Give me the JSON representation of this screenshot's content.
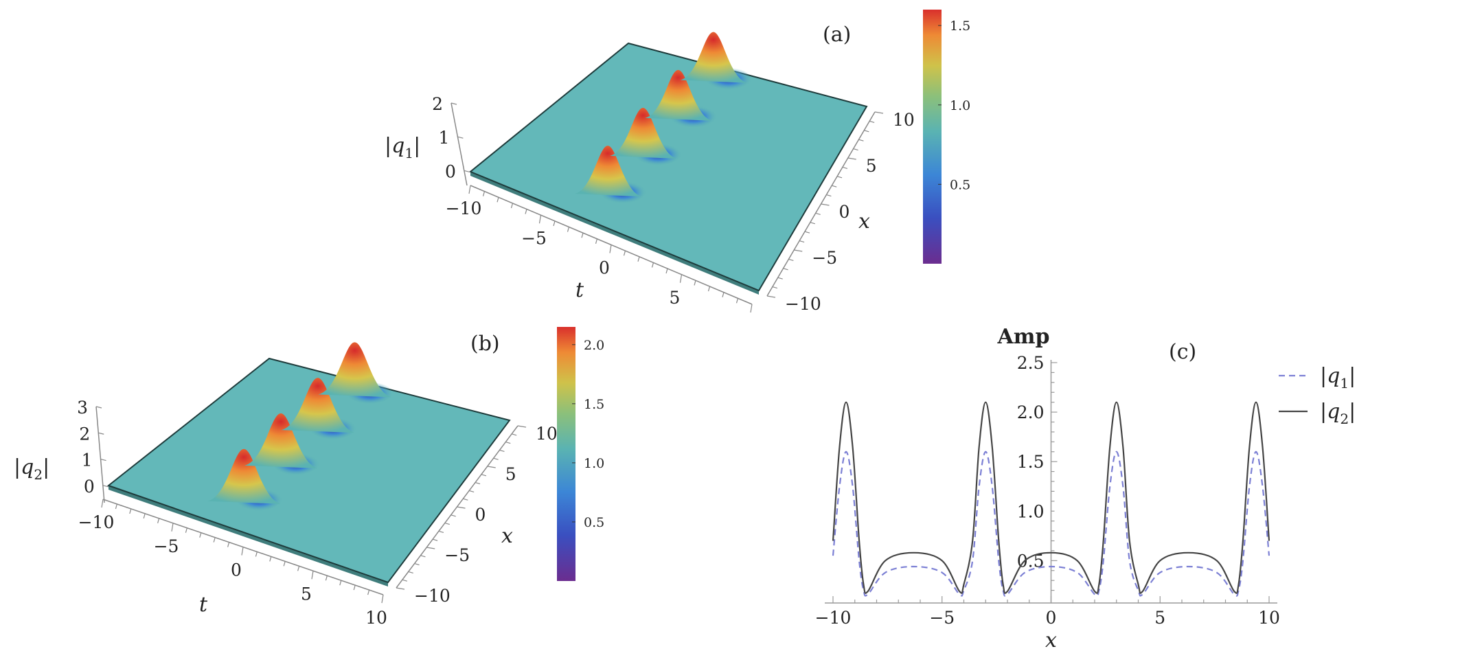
{
  "chart_data": [
    {
      "id": "a",
      "type": "surface",
      "panel_label": "(a)",
      "z_label_var": "q",
      "z_label_sub": "1",
      "z_axis_label": "|q1|",
      "x_axis_label": "t",
      "y_axis_label": "x",
      "t_ticks": [
        "−10",
        "−5",
        "0",
        "5"
      ],
      "x_ticks": [
        "10",
        "5",
        "0",
        "−5",
        "−10"
      ],
      "z_ticks": [
        "2",
        "1",
        "0"
      ],
      "peak_count": 4,
      "colorbar_ticks": [
        "1.5",
        "1.0",
        "0.5"
      ],
      "colorbar_range": [
        0,
        1.6
      ]
    },
    {
      "id": "b",
      "type": "surface",
      "panel_label": "(b)",
      "z_label_var": "q",
      "z_label_sub": "2",
      "z_axis_label": "|q2|",
      "x_axis_label": "t",
      "y_axis_label": "x",
      "t_ticks": [
        "−10",
        "−5",
        "0",
        "5",
        "10"
      ],
      "x_ticks": [
        "10",
        "5",
        "0",
        "−5",
        "−10"
      ],
      "z_ticks": [
        "3",
        "2",
        "1",
        "0"
      ],
      "peak_count": 4,
      "colorbar_ticks": [
        "2.0",
        "1.5",
        "1.0",
        "0.5"
      ],
      "colorbar_range": [
        0,
        2.15
      ]
    },
    {
      "id": "c",
      "type": "line",
      "panel_label": "(c)",
      "title": "Amp",
      "xlabel": "x",
      "xlim": [
        -10,
        10
      ],
      "ylim": [
        0.1,
        2.5
      ],
      "x_ticks": [
        -10,
        -5,
        0,
        5,
        10
      ],
      "x_tick_labels": [
        "−10",
        "−5",
        "0",
        "5",
        "10"
      ],
      "y_ticks": [
        0.5,
        1.0,
        1.5,
        2.0,
        2.5
      ],
      "y_tick_labels": [
        "0.5",
        "1.0",
        "1.5",
        "2.0",
        "2.5"
      ],
      "series": [
        {
          "name": "|q1|",
          "legend_var": "q",
          "legend_sub": "1",
          "style": "dashed",
          "color": "#7b7fd4",
          "x": [
            -10,
            -9.7,
            -9.4,
            -9.1,
            -8.8,
            -8.6,
            -8.4,
            -7.6,
            -6.3,
            -5.0,
            -4.2,
            -4.0,
            -3.6,
            -3.3,
            -3.0,
            -2.7,
            -2.4,
            -2.2,
            -2.0,
            -1.2,
            0,
            1.2,
            2.0,
            2.2,
            2.4,
            2.7,
            3.0,
            3.3,
            3.6,
            4.0,
            4.2,
            5.0,
            6.3,
            7.6,
            8.4,
            8.6,
            8.8,
            9.1,
            9.4,
            9.7,
            10
          ],
          "values": [
            0.55,
            1.25,
            1.6,
            1.25,
            0.5,
            0.2,
            0.16,
            0.38,
            0.44,
            0.38,
            0.16,
            0.2,
            0.5,
            1.25,
            1.6,
            1.25,
            0.5,
            0.2,
            0.16,
            0.38,
            0.44,
            0.38,
            0.16,
            0.2,
            0.5,
            1.25,
            1.6,
            1.25,
            0.5,
            0.2,
            0.16,
            0.38,
            0.44,
            0.38,
            0.16,
            0.2,
            0.5,
            1.25,
            1.6,
            1.25,
            0.55
          ]
        },
        {
          "name": "|q2|",
          "legend_var": "q",
          "legend_sub": "2",
          "style": "solid",
          "color": "#444444",
          "x": [
            -10,
            -9.7,
            -9.4,
            -9.1,
            -8.8,
            -8.6,
            -8.4,
            -7.6,
            -6.3,
            -5.0,
            -4.2,
            -4.0,
            -3.6,
            -3.3,
            -3.0,
            -2.7,
            -2.4,
            -2.2,
            -2.0,
            -1.2,
            0,
            1.2,
            2.0,
            2.2,
            2.4,
            2.7,
            3.0,
            3.3,
            3.6,
            4.0,
            4.2,
            5.0,
            6.3,
            7.6,
            8.4,
            8.6,
            8.8,
            9.1,
            9.4,
            9.7,
            10
          ],
          "values": [
            0.7,
            1.65,
            2.1,
            1.65,
            0.7,
            0.26,
            0.19,
            0.5,
            0.58,
            0.5,
            0.19,
            0.26,
            0.7,
            1.65,
            2.1,
            1.65,
            0.7,
            0.26,
            0.19,
            0.5,
            0.58,
            0.5,
            0.19,
            0.26,
            0.7,
            1.65,
            2.1,
            1.65,
            0.7,
            0.26,
            0.19,
            0.5,
            0.58,
            0.5,
            0.19,
            0.26,
            0.7,
            1.65,
            2.1,
            1.65,
            0.7
          ]
        }
      ]
    }
  ]
}
